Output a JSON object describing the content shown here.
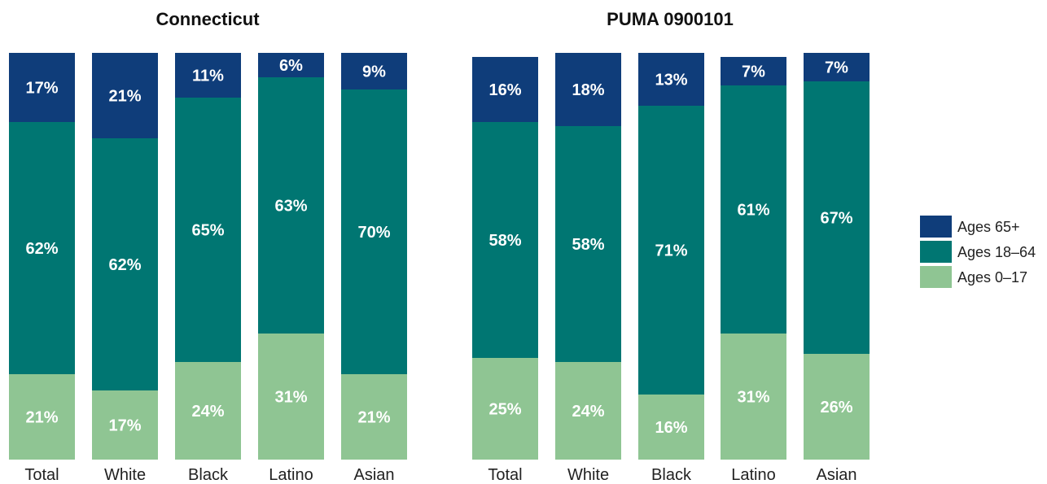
{
  "chart_data": [
    {
      "type": "bar",
      "stacked": true,
      "title": "Connecticut",
      "categories": [
        "Total",
        "White",
        "Black",
        "Latino",
        "Asian"
      ],
      "series": [
        {
          "name": "Ages 0–17",
          "color": "#8fc593",
          "values": [
            21,
            17,
            24,
            31,
            21
          ],
          "labels": [
            "21%",
            "17%",
            "24%",
            "31%",
            "21%"
          ]
        },
        {
          "name": "Ages 18–64",
          "color": "#007672",
          "values": [
            62,
            62,
            65,
            63,
            70
          ],
          "labels": [
            "62%",
            "62%",
            "65%",
            "63%",
            "70%"
          ]
        },
        {
          "name": "Ages 65+",
          "color": "#0f3d7a",
          "values": [
            17,
            21,
            11,
            6,
            9
          ],
          "labels": [
            "17%",
            "21%",
            "11%",
            "6%",
            "9%"
          ]
        }
      ],
      "ylim": [
        0,
        100
      ]
    },
    {
      "type": "bar",
      "stacked": true,
      "title": "PUMA 0900101",
      "categories": [
        "Total",
        "White",
        "Black",
        "Latino",
        "Asian"
      ],
      "series": [
        {
          "name": "Ages 0–17",
          "color": "#8fc593",
          "values": [
            25,
            24,
            16,
            31,
            26
          ],
          "labels": [
            "25%",
            "24%",
            "16%",
            "31%",
            "26%"
          ]
        },
        {
          "name": "Ages 18–64",
          "color": "#007672",
          "values": [
            58,
            58,
            71,
            61,
            67
          ],
          "labels": [
            "58%",
            "58%",
            "71%",
            "61%",
            "67%"
          ]
        },
        {
          "name": "Ages 65+",
          "color": "#0f3d7a",
          "values": [
            16,
            18,
            13,
            7,
            7
          ],
          "labels": [
            "16%",
            "18%",
            "13%",
            "7%",
            "7%"
          ]
        }
      ],
      "ylim": [
        0,
        100
      ]
    }
  ],
  "legend": {
    "items": [
      {
        "label": "Ages 65+",
        "color": "#0f3d7a"
      },
      {
        "label": "Ages 18–64",
        "color": "#007672"
      },
      {
        "label": "Ages 0–17",
        "color": "#8fc593"
      }
    ]
  }
}
